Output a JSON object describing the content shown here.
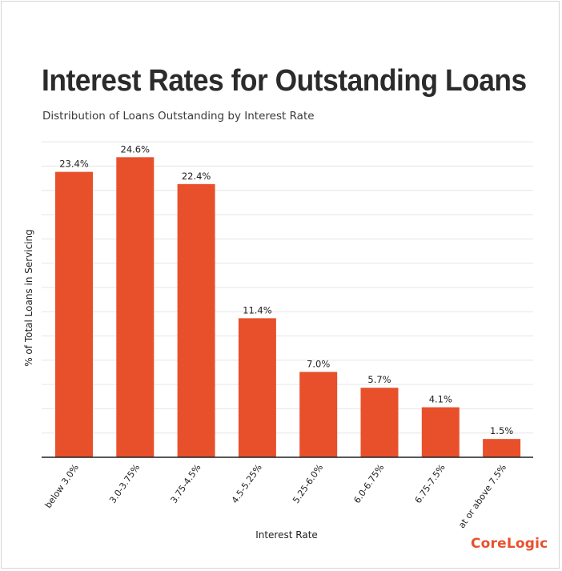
{
  "title": "Interest Rates for Outstanding Loans",
  "subtitle": "Distribution of Loans Outstanding by Interest Rate",
  "brand": "CoreLogic",
  "colors": {
    "bar": "#e8502c",
    "grid": "#e6e6e6",
    "axis": "#222222",
    "text": "#222222"
  },
  "chart_data": {
    "type": "bar",
    "categories": [
      "below 3.0%",
      "3.0-3.75%",
      "3.75-4.5%",
      "4.5-5.25%",
      "5.25-6.0%",
      "6.0-6.75%",
      "6.75-7.5%",
      "at or above 7.5%"
    ],
    "values": [
      23.4,
      24.6,
      22.4,
      11.4,
      7.0,
      5.7,
      4.1,
      1.5
    ],
    "data_labels": [
      "23.4%",
      "24.6%",
      "22.4%",
      "11.4%",
      "7.0%",
      "5.7%",
      "4.1%",
      "1.5%"
    ],
    "xlabel": "Interest Rate",
    "ylabel": "% of Total Loans in Servicing",
    "ylim": [
      0,
      26
    ],
    "grid": true,
    "legend": "none"
  }
}
